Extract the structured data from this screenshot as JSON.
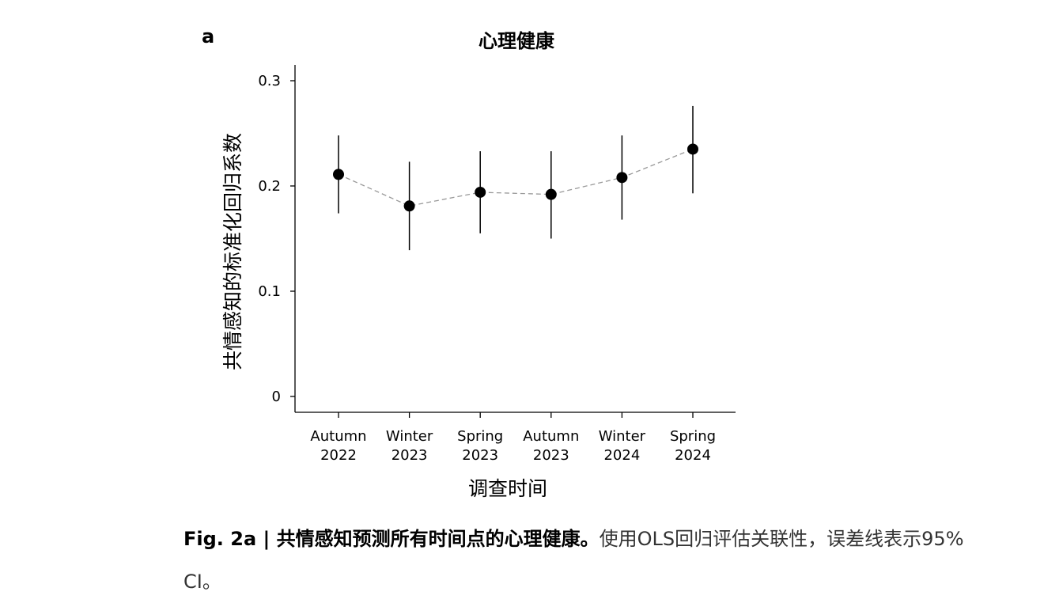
{
  "panel_letter": "a",
  "caption": {
    "head": "Fig. 2a | 共情感知预测所有时间点的心理健康。",
    "body": "使用OLS回归评估关联性，误差线表示95% CI。"
  },
  "chart_data": {
    "type": "scatter",
    "title": "心理健康",
    "xlabel": "调查时间",
    "ylabel": "共情感知的标准化回归系数",
    "categories": [
      "Autumn 2022",
      "Winter 2023",
      "Spring 2023",
      "Autumn 2023",
      "Winter 2024",
      "Spring 2024"
    ],
    "category_lines": [
      [
        "Autumn",
        "2022"
      ],
      [
        "Winter",
        "2023"
      ],
      [
        "Spring",
        "2023"
      ],
      [
        "Autumn",
        "2023"
      ],
      [
        "Winter",
        "2024"
      ],
      [
        "Spring",
        "2024"
      ]
    ],
    "values": [
      0.211,
      0.181,
      0.194,
      0.192,
      0.208,
      0.235
    ],
    "ci_lower": [
      0.174,
      0.139,
      0.155,
      0.15,
      0.168,
      0.193
    ],
    "ci_upper": [
      0.248,
      0.223,
      0.233,
      0.233,
      0.248,
      0.276
    ],
    "yticks": [
      0,
      0.1,
      0.2,
      0.3
    ],
    "ytick_labels": [
      "0",
      "0.1",
      "0.2",
      "0.3"
    ],
    "ylim": [
      -0.015,
      0.315
    ],
    "connector": "dashed",
    "grid": false,
    "colors": {
      "points": "#000000",
      "connector": "#999999",
      "errorbars": "#000000",
      "axes": "#000000"
    }
  }
}
